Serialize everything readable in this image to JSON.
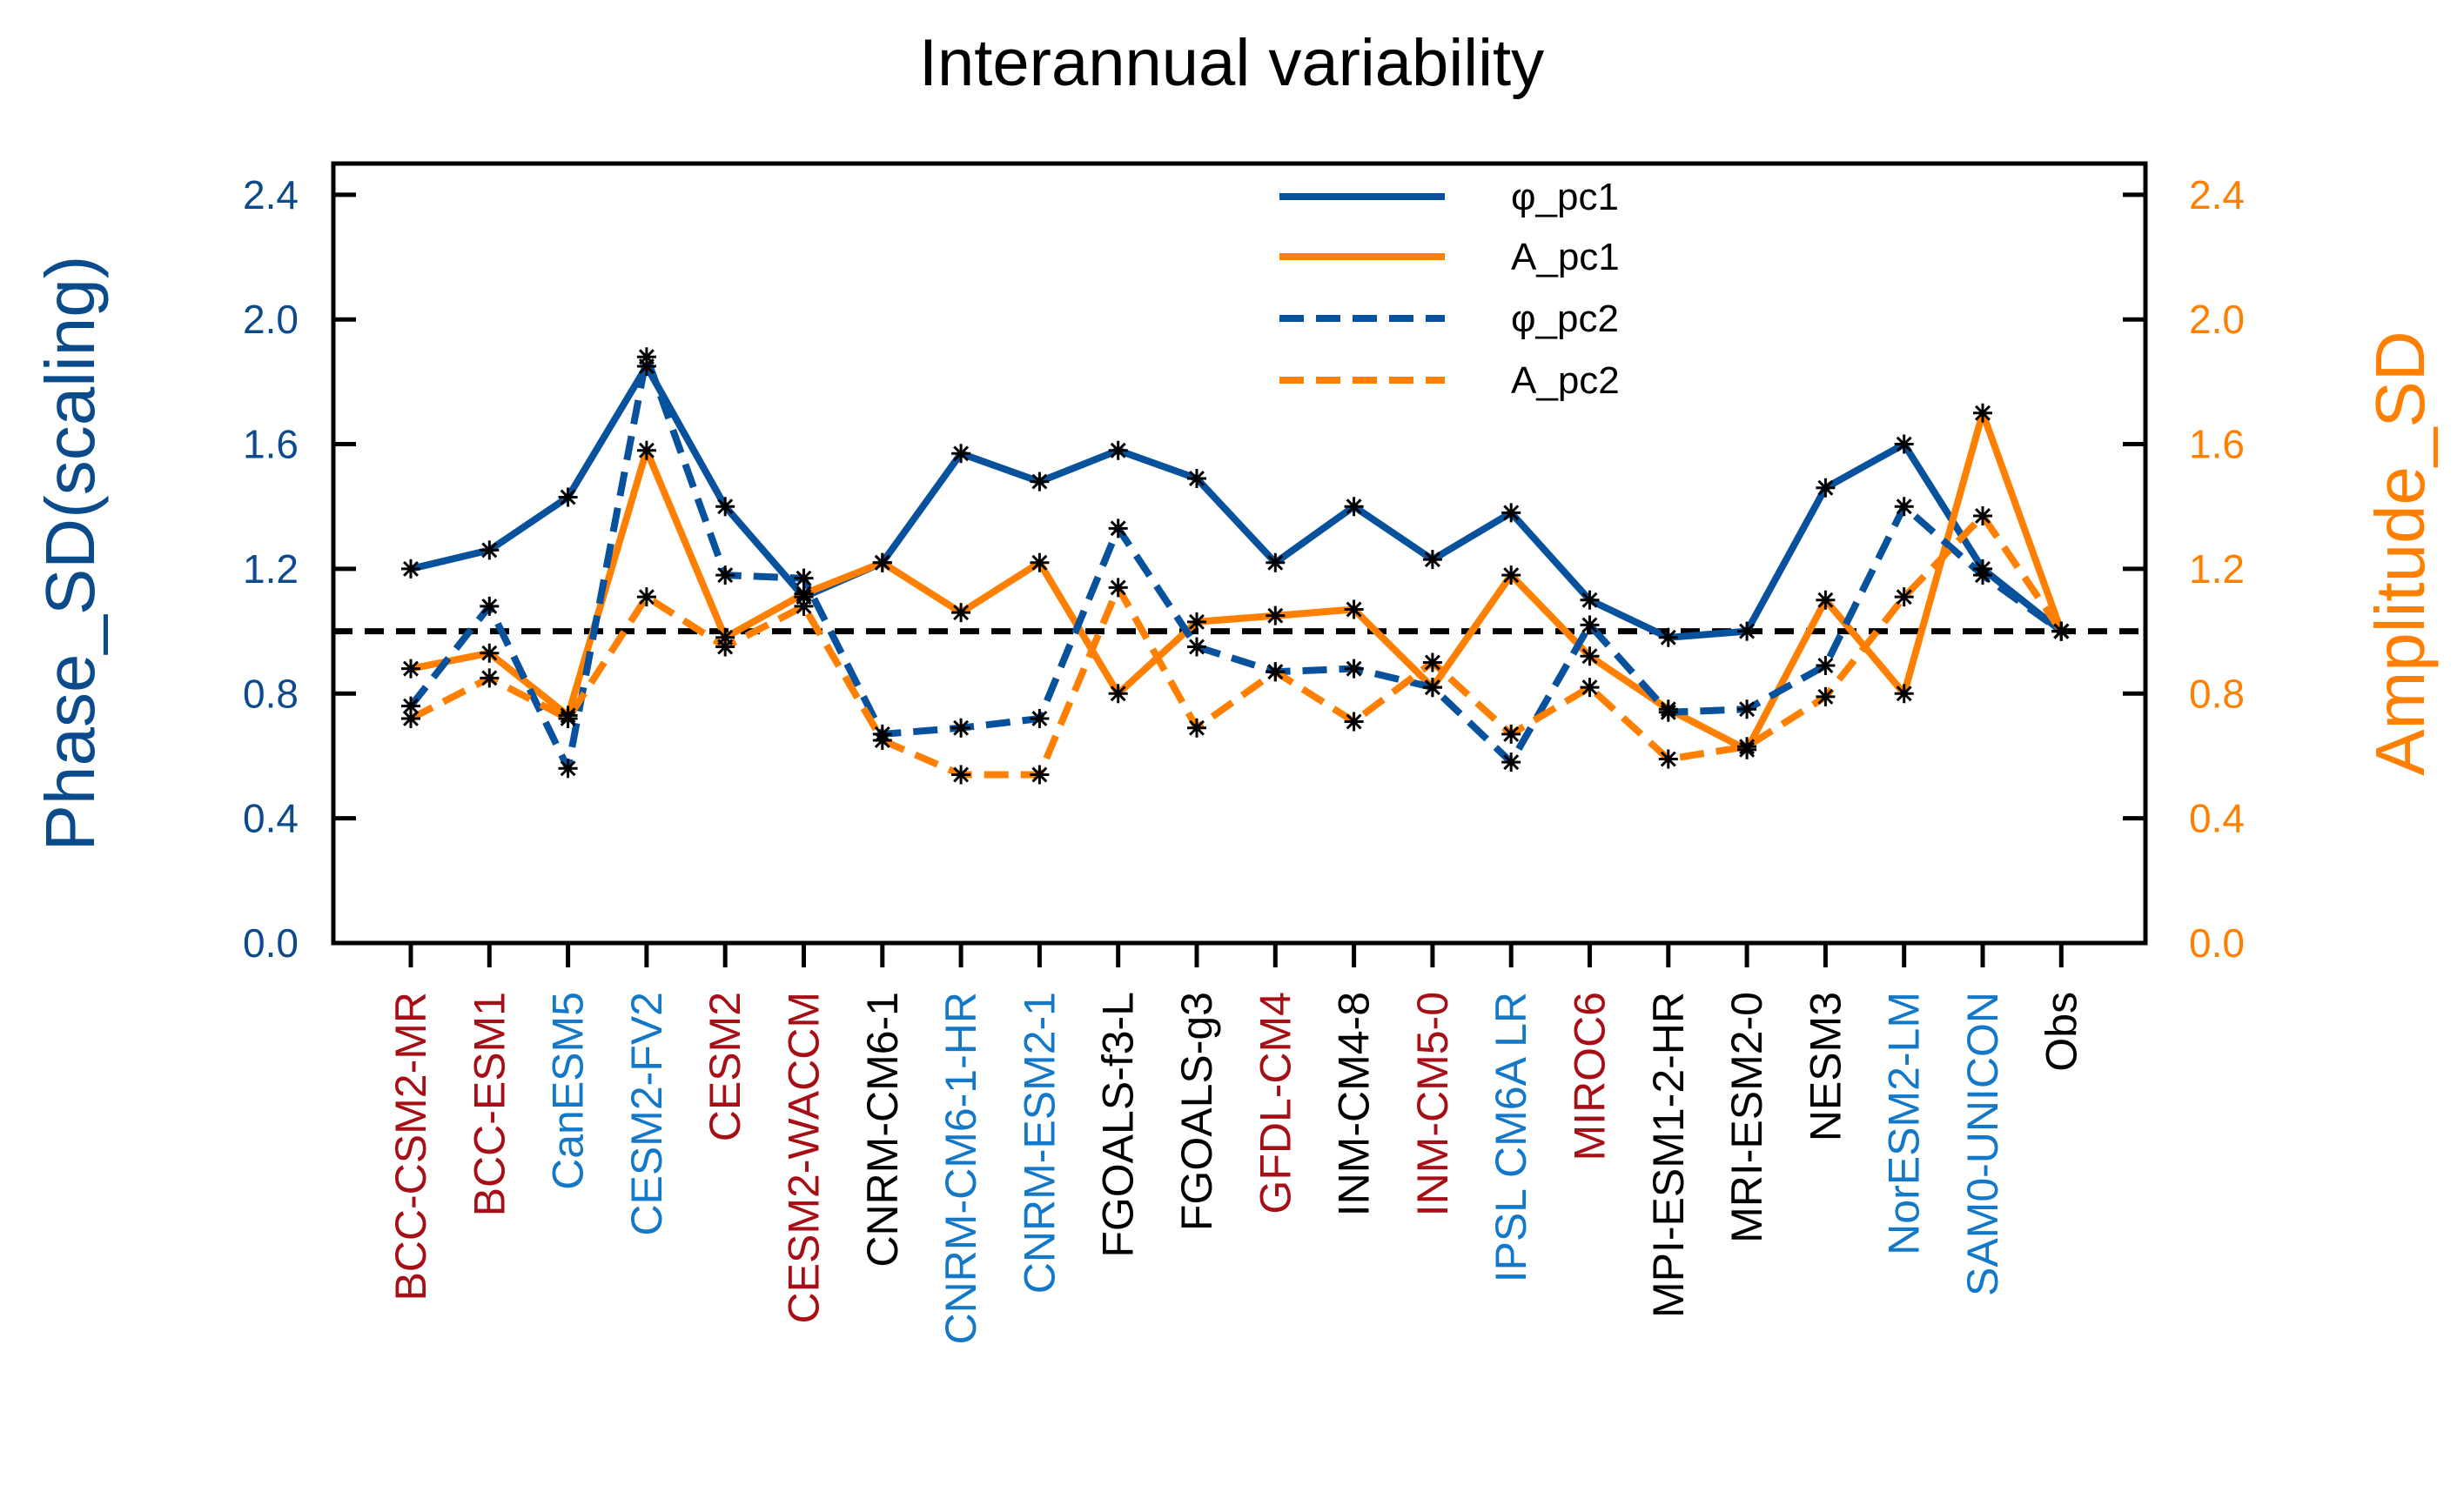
{
  "chart_data": {
    "type": "line",
    "title": "Interannual variability",
    "ylabel_left": "Phase_SD(scaling)",
    "ylabel_right": "Amplitude_SD",
    "ylim": [
      0,
      2.5
    ],
    "yticks": [
      "0.0",
      "0.4",
      "0.8",
      "1.2",
      "1.6",
      "2.0",
      "2.4"
    ],
    "reference_line": 1.0,
    "categories": [
      "BCC-CSM2-MR",
      "BCC-ESM1",
      "CanESM5",
      "CESM2-FV2",
      "CESM2",
      "CESM2-WACCM",
      "CNRM-CM6-1",
      "CNRM-CM6-1-HR",
      "CNRM-ESM2-1",
      "FGOALS-f3-L",
      "FGOALS-g3",
      "GFDL-CM4",
      "INM-CM4-8",
      "INM-CM5-0",
      "IPSL CM6A LR",
      "MIROC6",
      "MPI-ESM1-2-HR",
      "MRI-ESM2-0",
      "NESM3",
      "NorESM2-LM",
      "SAM0-UNICON",
      "Obs"
    ],
    "category_groups": [
      "red",
      "red",
      "blue",
      "blue",
      "red",
      "red",
      "black",
      "blue",
      "blue",
      "black",
      "black",
      "red",
      "black",
      "red",
      "blue",
      "red",
      "black",
      "black",
      "black",
      "blue",
      "blue",
      "black"
    ],
    "series": [
      {
        "name": "φ_pc1",
        "color": "#08519c",
        "dash": "solid",
        "values": [
          1.2,
          1.26,
          1.43,
          1.85,
          1.4,
          1.11,
          1.22,
          1.57,
          1.48,
          1.58,
          1.49,
          1.22,
          1.4,
          1.23,
          1.38,
          1.1,
          0.98,
          1.0,
          1.46,
          1.6,
          1.2,
          1.0
        ]
      },
      {
        "name": "A_pc1",
        "color": "#ff8000",
        "dash": "solid",
        "values": [
          0.88,
          0.93,
          0.73,
          1.58,
          0.98,
          1.12,
          1.22,
          1.06,
          1.22,
          0.8,
          1.03,
          1.05,
          1.07,
          0.82,
          1.18,
          0.92,
          0.75,
          0.62,
          1.1,
          0.8,
          1.7,
          1.0
        ]
      },
      {
        "name": "φ_pc2",
        "color": "#08519c",
        "dash": "dashed",
        "values": [
          0.76,
          1.08,
          0.56,
          1.88,
          1.18,
          1.17,
          0.67,
          0.69,
          0.72,
          1.33,
          0.95,
          0.87,
          0.88,
          0.82,
          0.58,
          1.02,
          0.74,
          0.75,
          0.89,
          1.4,
          1.18,
          1.0
        ]
      },
      {
        "name": "A_pc2",
        "color": "#ff8000",
        "dash": "dashed",
        "values": [
          0.72,
          0.85,
          0.72,
          1.11,
          0.95,
          1.08,
          0.65,
          0.54,
          0.54,
          1.14,
          0.69,
          0.87,
          0.71,
          0.9,
          0.67,
          0.82,
          0.59,
          0.63,
          0.79,
          1.11,
          1.37,
          1.0
        ]
      }
    ],
    "colors": {
      "left_axis": "#0b4a8b",
      "right_axis": "#ff8000",
      "red_label": "#a50f15",
      "blue_label": "#1478c8",
      "black_label": "#000000"
    }
  }
}
